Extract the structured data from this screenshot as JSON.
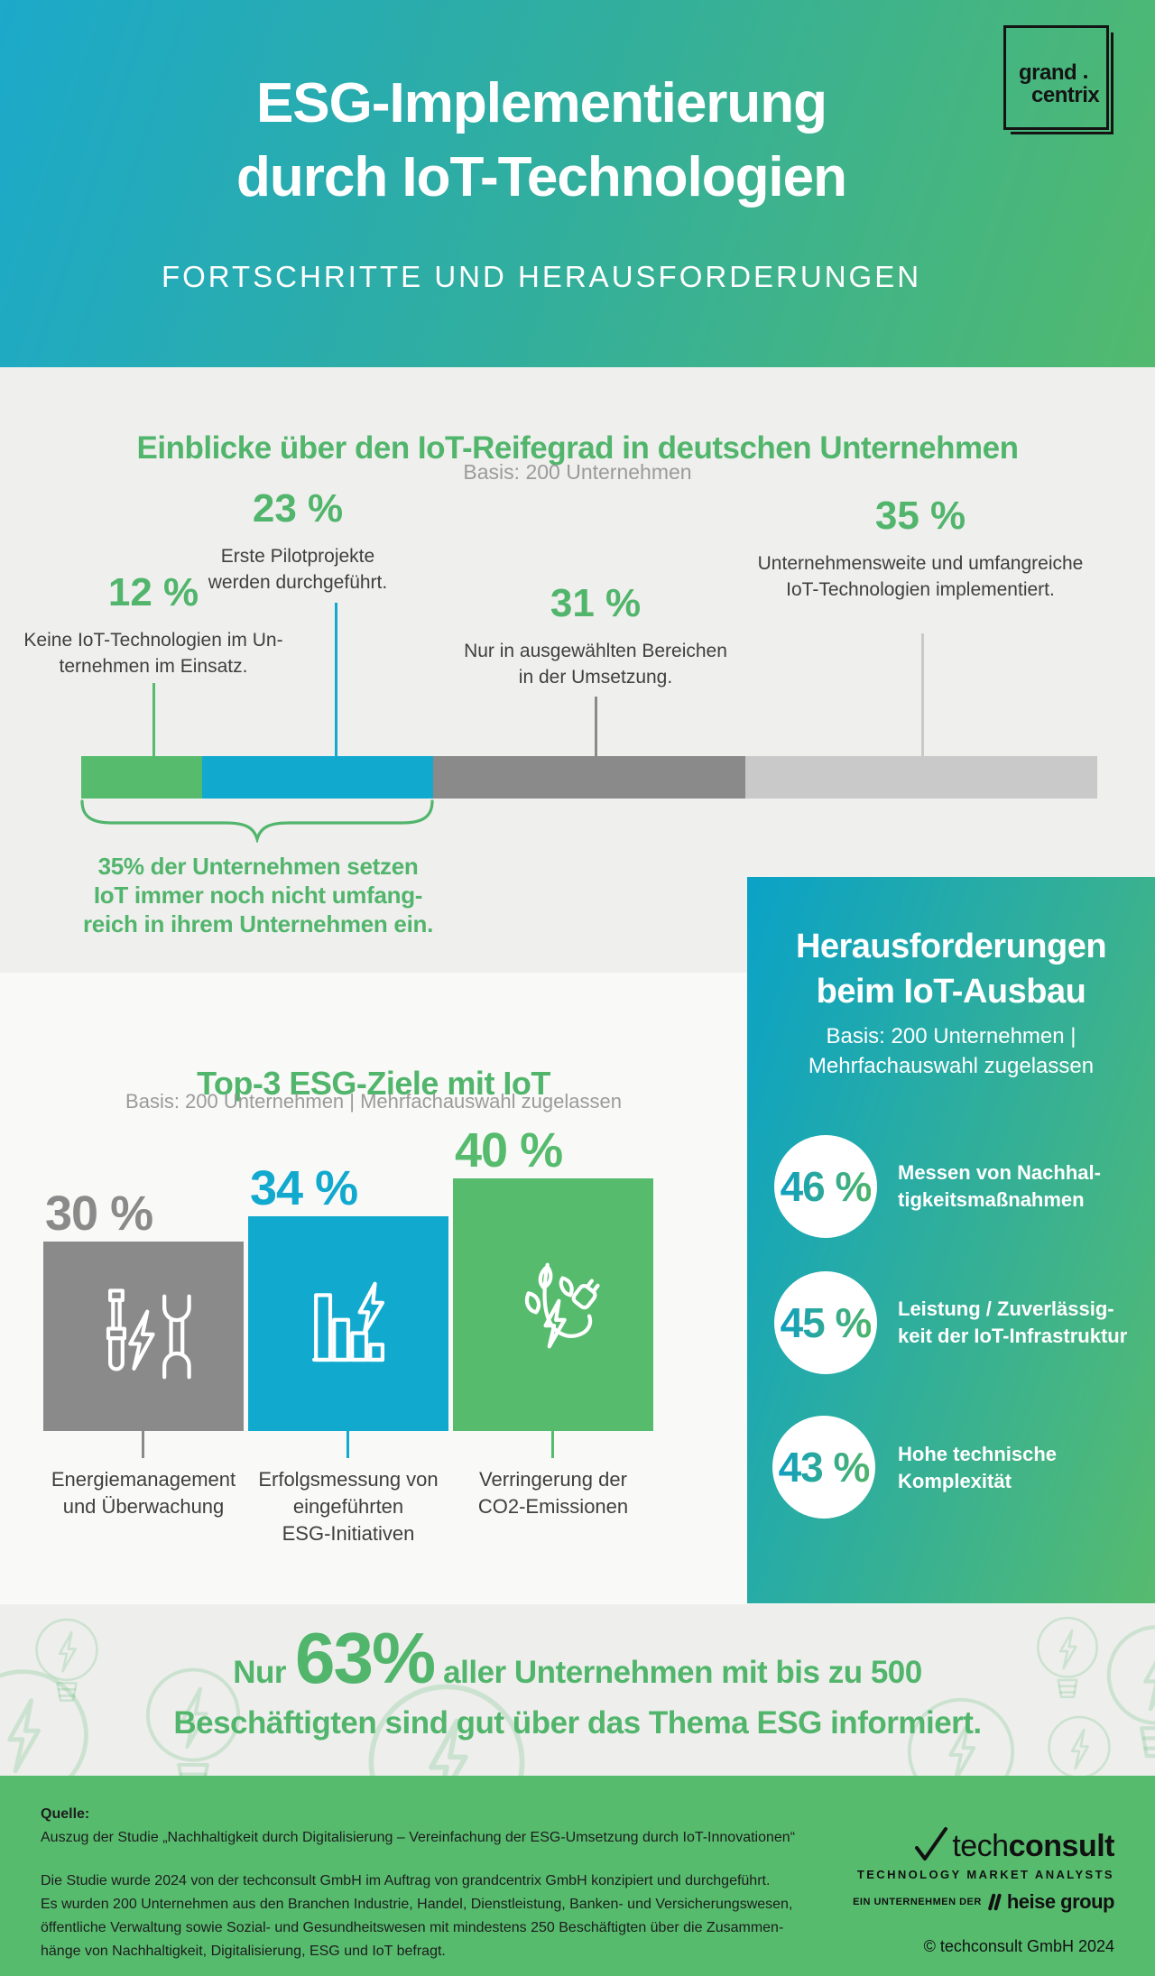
{
  "hero": {
    "title_line1": "ESG-Implementierung",
    "title_line2": "durch IoT-Technologien",
    "subtitle": "FORTSCHRITTE UND HERAUSFORDERUNGEN",
    "logo": {
      "line1": "grand",
      "line2": "centrix"
    }
  },
  "maturity": {
    "title": "Einblicke über den IoT-Reifegrad in deutschen Unternehmen",
    "basis": "Basis: 200 Unternehmen",
    "annotations": [
      {
        "pct": "12 %",
        "lines": [
          "Keine IoT-Technologien im Un-",
          "ternehmen im Einsatz."
        ]
      },
      {
        "pct": "23 %",
        "lines": [
          "Erste Pilotprojekte",
          "werden durchgeführt."
        ]
      },
      {
        "pct": "31 %",
        "lines": [
          "Nur in ausgewählten Bereichen",
          "in der Umsetzung."
        ]
      },
      {
        "pct": "35 %",
        "lines": [
          "Unternehmensweite und umfangreiche",
          "IoT-Technologien implementiert."
        ]
      }
    ],
    "note_lines": [
      "35% der Unternehmen setzen",
      "IoT immer noch nicht umfang-",
      "reich in ihrem Unternehmen ein."
    ]
  },
  "goals": {
    "title": "Top-3 ESG-Ziele mit IoT",
    "basis": "Basis: 200 Unternehmen | Mehrfachauswahl zugelassen",
    "bars": [
      {
        "pct": "30 %",
        "caption": [
          "Energiemanagement",
          "und Überwachung"
        ]
      },
      {
        "pct": "34 %",
        "caption": [
          "Erfolgsmessung von",
          "eingeführten",
          "ESG-Initiativen"
        ]
      },
      {
        "pct": "40 %",
        "caption": [
          "Verringerung der",
          "CO2-Emissionen"
        ]
      }
    ]
  },
  "challenges": {
    "title_lines": [
      "Herausforderungen",
      "beim IoT-Ausbau"
    ],
    "basis_lines": [
      "Basis: 200 Unternehmen |",
      "Mehrfachauswahl zugelassen"
    ],
    "items": [
      {
        "pct": "46 %",
        "lines": [
          "Messen von Nachhal-",
          "tigkeitsmaßnahmen"
        ]
      },
      {
        "pct": "45 %",
        "lines": [
          "Leistung / Zuverlässig-",
          "keit der IoT-Infrastruktur"
        ]
      },
      {
        "pct": "43 %",
        "lines": [
          "Hohe technische",
          "Komplexität"
        ]
      }
    ]
  },
  "highlight": {
    "prefix": "Nur",
    "big": "63%",
    "rest": "aller Unternehmen mit bis zu 500",
    "line2": "Beschäftigten sind gut über das Thema ESG informiert."
  },
  "footer": {
    "source_label": "Quelle:",
    "source_line": "Auszug der Studie „Nachhaltigkeit durch Digitalisierung – Vereinfachung der ESG-Umsetzung durch IoT-Innovationen“",
    "body_lines": [
      "Die Studie wurde 2024 von der techconsult GmbH im Auftrag von grandcentrix GmbH konzipiert und durchgeführt.",
      "Es wurden 200 Unternehmen aus den Branchen Industrie, Handel, Dienstleistung, Banken- und Versicherungswesen,",
      "öffentliche Verwaltung sowie Sozial- und Gesundheitswesen mit mindestens 250 Beschäftigten über die Zusammen-",
      "hänge von Nachhaltigkeit, Digitalisierung, ESG und IoT befragt."
    ],
    "brand": {
      "name_light": "tech",
      "name_bold": "consult",
      "tagline": "TECHNOLOGY MARKET ANALYSTS",
      "company_prefix": "EIN UNTERNEHMEN DER",
      "company_name": "heise group",
      "copyright": "© techconsult GmbH 2024"
    }
  },
  "colors": {
    "accent_green": "#52b56c",
    "teal_blue": "#12a9cf",
    "gray_dark": "#8a8a8a",
    "gray_light": "#c9c9c9",
    "footer_green": "#57bb6e",
    "hero_gradient_start": "#1ca9ca",
    "hero_gradient_end": "#52ba6e",
    "text_dark": "#3f3f3f",
    "basis_gray": "#9b9b9b"
  },
  "chart_data": [
    {
      "type": "bar",
      "variant": "horizontal-stacked",
      "title": "Einblicke über den IoT-Reifegrad in deutschen Unternehmen",
      "basis": "Basis: 200 Unternehmen",
      "categories": [
        "Keine IoT-Technologien im Unternehmen im Einsatz.",
        "Erste Pilotprojekte werden durchgeführt.",
        "Nur in ausgewählten Bereichen in der Umsetzung.",
        "Unternehmensweite und umfangreiche IoT-Technologien implementiert."
      ],
      "values": [
        12,
        23,
        31,
        35
      ],
      "unit": "%",
      "colors": [
        "#57bb6e",
        "#12a9cf",
        "#8a8a8a",
        "#c9c9c9"
      ],
      "annotation": "35% der Unternehmen setzen IoT immer noch nicht umfangreich in ihrem Unternehmen ein.",
      "legend_position": "none",
      "grid": false
    },
    {
      "type": "bar",
      "variant": "vertical",
      "title": "Top-3 ESG-Ziele mit IoT",
      "basis": "Basis: 200 Unternehmen | Mehrfachauswahl zugelassen",
      "categories": [
        "Energiemanagement und Überwachung",
        "Erfolgsmessung von eingeführten ESG-Initiativen",
        "Verringerung der CO2-Emissionen"
      ],
      "values": [
        30,
        34,
        40
      ],
      "unit": "%",
      "colors": [
        "#8a8a8a",
        "#12a9cf",
        "#57bb6e"
      ],
      "ylim": [
        0,
        40
      ],
      "grid": false
    },
    {
      "type": "table",
      "title": "Herausforderungen beim IoT-Ausbau",
      "basis": "Basis: 200 Unternehmen | Mehrfachauswahl zugelassen",
      "categories": [
        "Messen von Nachhaltigkeitsmaßnahmen",
        "Leistung / Zuverlässigkeit der IoT-Infrastruktur",
        "Hohe technische Komplexität"
      ],
      "values": [
        46,
        45,
        43
      ],
      "unit": "%"
    }
  ]
}
